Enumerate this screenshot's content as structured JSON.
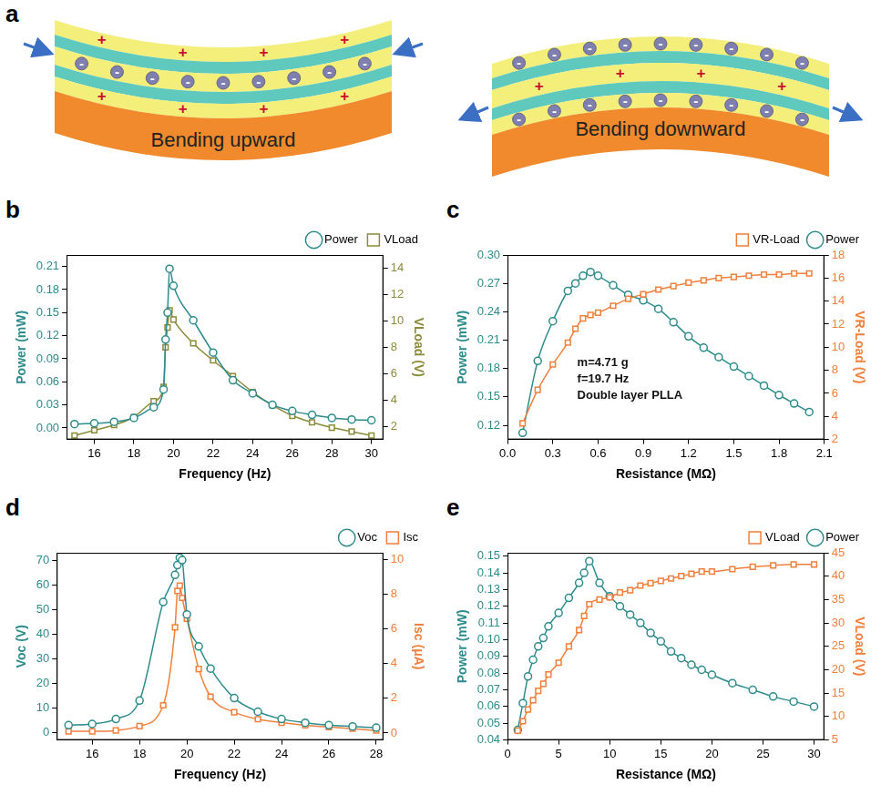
{
  "diagram": {
    "panel": "a",
    "parts": [
      {
        "caption": "Bending upward",
        "charges": [
          "+",
          "-",
          "+"
        ]
      },
      {
        "caption": "Bending downward",
        "charges": [
          "-",
          "+",
          "-"
        ]
      }
    ]
  },
  "chart_data": [
    {
      "panel": "b",
      "type": "line",
      "x_label": "Frequency (Hz)",
      "y_label": "Power (mW)",
      "y2_label": "VLoad (V)",
      "x": [
        15,
        16,
        17,
        18,
        19,
        19.5,
        19.6,
        19.7,
        19.8,
        20,
        21,
        22,
        23,
        24,
        25,
        26,
        27,
        28,
        29,
        30
      ],
      "xlim": [
        14.6,
        30.6
      ],
      "xticks": [
        16,
        18,
        20,
        22,
        24,
        26,
        28,
        30
      ],
      "ylim": [
        -0.015,
        0.225
      ],
      "yticks": [
        {
          "value": 0,
          "label": "0.00"
        },
        0.03,
        0.06,
        0.09,
        0.12,
        0.15,
        0.18,
        0.21
      ],
      "y2lim": [
        1,
        15
      ],
      "y2ticks": [
        2,
        4,
        6,
        8,
        10,
        12,
        14
      ],
      "grid": false,
      "legend": "top",
      "series": [
        {
          "name": "Power",
          "color": "#2e8b8b",
          "marker": "circle",
          "values": [
            0.005,
            0.006,
            0.008,
            0.013,
            0.027,
            0.05,
            0.115,
            0.15,
            0.207,
            0.185,
            0.14,
            0.098,
            0.062,
            0.045,
            0.03,
            0.022,
            0.017,
            0.013,
            0.011,
            0.01
          ]
        },
        {
          "name": "VLoad",
          "color": "#8b8b3a",
          "marker": "square",
          "axis": "y2",
          "values": [
            1.3,
            1.7,
            2.1,
            2.7,
            3.9,
            5.0,
            8.0,
            9.5,
            10.8,
            10.1,
            8.3,
            7.0,
            5.8,
            4.6,
            3.6,
            2.8,
            2.3,
            1.9,
            1.6,
            1.3
          ]
        }
      ]
    },
    {
      "panel": "c",
      "type": "line",
      "x_label": "Resistance (MΩ)",
      "y_label": "Power (mW)",
      "y2_label": "VR-Load (V)",
      "annotations": [
        "m=4.71 g",
        "f=19.7 Hz",
        "Double layer PLLA"
      ],
      "x": [
        0.1,
        0.2,
        0.3,
        0.4,
        0.45,
        0.5,
        0.55,
        0.6,
        0.7,
        0.8,
        0.9,
        1.0,
        1.1,
        1.2,
        1.3,
        1.4,
        1.5,
        1.6,
        1.7,
        1.8,
        1.9,
        2.0
      ],
      "xlim": [
        0,
        2.1
      ],
      "xticks": [
        {
          "value": 0,
          "label": "0.0"
        },
        0.3,
        0.6,
        0.9,
        1.2,
        1.5,
        1.8,
        2.1
      ],
      "ylim": [
        0.105,
        0.3
      ],
      "yticks": [
        0.12,
        0.15,
        0.18,
        0.21,
        0.24,
        0.27,
        {
          "value": 0.3,
          "label": "0.30"
        }
      ],
      "y2lim": [
        2,
        18
      ],
      "y2ticks": [
        2,
        4,
        6,
        8,
        10,
        12,
        14,
        16,
        18
      ],
      "grid": false,
      "legend": "top",
      "series": [
        {
          "name": "VR-Load",
          "color": "#f0803c",
          "marker": "square",
          "axis": "y2",
          "values": [
            3.4,
            6.3,
            8.5,
            10.4,
            11.6,
            12.5,
            12.8,
            13.0,
            13.6,
            14.2,
            14.6,
            15.0,
            15.3,
            15.6,
            15.8,
            16.0,
            16.1,
            16.2,
            16.3,
            16.3,
            16.4,
            16.4
          ]
        },
        {
          "name": "Power",
          "color": "#2e8b8b",
          "marker": "circle",
          "values": [
            0.112,
            0.188,
            0.23,
            0.262,
            0.27,
            0.278,
            0.282,
            0.278,
            0.268,
            0.258,
            0.252,
            0.243,
            0.229,
            0.214,
            0.202,
            0.192,
            0.182,
            0.172,
            0.162,
            0.152,
            0.143,
            0.134
          ]
        }
      ]
    },
    {
      "panel": "d",
      "type": "line",
      "x_label": "Frequency (Hz)",
      "y_label": "Voc (V)",
      "y2_label": "Isc (μA)",
      "x": [
        15,
        16,
        17,
        18,
        19,
        19.5,
        19.6,
        19.7,
        19.8,
        20,
        20.5,
        21,
        22,
        23,
        24,
        25,
        26,
        27,
        28
      ],
      "xlim": [
        14.5,
        28.3
      ],
      "xticks": [
        16,
        18,
        20,
        22,
        24,
        26,
        28
      ],
      "ylim": [
        -3,
        73
      ],
      "yticks": [
        0,
        10,
        20,
        30,
        40,
        50,
        60,
        70
      ],
      "y2lim": [
        -0.4,
        10.4
      ],
      "y2ticks": [
        0,
        2,
        4,
        6,
        8,
        10
      ],
      "grid": false,
      "legend": "top",
      "series": [
        {
          "name": "Voc",
          "color": "#2e8b8b",
          "marker": "circle",
          "values": [
            3,
            3.5,
            5.5,
            13,
            53,
            64,
            68,
            71,
            70,
            48,
            35,
            26,
            14,
            8.5,
            5.5,
            4,
            3,
            2.5,
            2
          ]
        },
        {
          "name": "Isc",
          "color": "#f0803c",
          "marker": "square",
          "axis": "y2",
          "values": [
            0.1,
            0.1,
            0.15,
            0.4,
            1.6,
            6.1,
            8.2,
            8.5,
            7.8,
            6.6,
            3.7,
            2.1,
            1.2,
            0.8,
            0.6,
            0.45,
            0.35,
            0.25,
            0.15
          ]
        }
      ]
    },
    {
      "panel": "e",
      "type": "line",
      "x_label": "Resistance (MΩ)",
      "y_label": "Power (mW)",
      "y2_label": "VLoad (V)",
      "x": [
        1,
        1.5,
        2,
        2.5,
        3,
        3.5,
        4,
        5,
        6,
        7,
        7.5,
        8,
        9,
        10,
        11,
        12,
        13,
        14,
        15,
        16,
        17,
        18,
        19,
        20,
        22,
        24,
        26,
        28,
        30
      ],
      "xlim": [
        0,
        31
      ],
      "xticks": [
        0,
        5,
        10,
        15,
        20,
        25,
        30
      ],
      "ylim": [
        0.04,
        0.152
      ],
      "yticks": [
        0.04,
        0.05,
        0.06,
        0.07,
        0.08,
        0.09,
        {
          "value": 0.1,
          "label": "0.10"
        },
        0.11,
        0.12,
        0.13,
        0.14,
        0.15
      ],
      "y2lim": [
        5,
        45
      ],
      "y2ticks": [
        5,
        10,
        15,
        20,
        25,
        30,
        35,
        40,
        45
      ],
      "grid": false,
      "legend": "top",
      "series": [
        {
          "name": "VLoad",
          "color": "#f0803c",
          "marker": "square",
          "axis": "y2",
          "values": [
            7,
            9,
            11.5,
            13.5,
            15.5,
            17,
            19,
            21.5,
            25,
            28.5,
            31.5,
            34,
            35,
            35.5,
            36.5,
            37,
            38,
            38.5,
            39,
            39.5,
            40,
            40.5,
            41,
            41,
            41.5,
            42,
            42.3,
            42.5,
            42.5
          ]
        },
        {
          "name": "Power",
          "color": "#2e8b8b",
          "marker": "circle",
          "values": [
            0.046,
            0.062,
            0.078,
            0.088,
            0.096,
            0.101,
            0.108,
            0.116,
            0.125,
            0.134,
            0.14,
            0.147,
            0.134,
            0.126,
            0.12,
            0.115,
            0.11,
            0.104,
            0.099,
            0.093,
            0.089,
            0.085,
            0.082,
            0.079,
            0.074,
            0.07,
            0.066,
            0.063,
            0.06
          ]
        }
      ]
    }
  ]
}
